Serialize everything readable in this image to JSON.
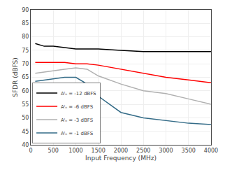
{
  "chart_data": {
    "type": "line",
    "xlabel": "Input Frequency (MHz)",
    "ylabel": "SFDR (dBFS)",
    "x": [
      100,
      300,
      500,
      750,
      1000,
      1250,
      1500,
      2000,
      2500,
      3000,
      3500,
      4000
    ],
    "series": [
      {
        "name": "Aᴵₙ = -12 dBFS",
        "color": "#000000",
        "values": [
          77.5,
          76.5,
          76.5,
          76.0,
          75.5,
          75.5,
          75.5,
          75.0,
          74.5,
          74.5,
          74.5,
          74.5
        ]
      },
      {
        "name": "Aᴵₙ = -6 dBFS",
        "color": "#ff0000",
        "values": [
          70.5,
          70.5,
          70.5,
          70.5,
          70.0,
          70.0,
          69.5,
          68.0,
          66.5,
          65.0,
          64.0,
          63.0
        ]
      },
      {
        "name": "Aᴵₙ = -3 dBFS",
        "color": "#b0b0b0",
        "values": [
          66.5,
          67.0,
          67.5,
          68.0,
          68.5,
          68.0,
          65.5,
          62.5,
          60.0,
          59.0,
          57.0,
          55.0
        ]
      },
      {
        "name": "Aᴵₙ = -1 dBFS",
        "color": "#336b87",
        "values": [
          63.5,
          64.0,
          64.5,
          65.0,
          65.0,
          62.5,
          58.0,
          52.0,
          50.0,
          49.0,
          48.0,
          47.5
        ]
      }
    ],
    "xlim": [
      0,
      4000
    ],
    "xticks": [
      0,
      500,
      1000,
      1500,
      2000,
      2500,
      3000,
      3500,
      4000
    ],
    "ylim": [
      40,
      90
    ],
    "yticks": [
      40,
      45,
      50,
      55,
      60,
      65,
      70,
      75,
      80,
      85,
      90
    ],
    "grid": true,
    "legend": "lower left"
  }
}
